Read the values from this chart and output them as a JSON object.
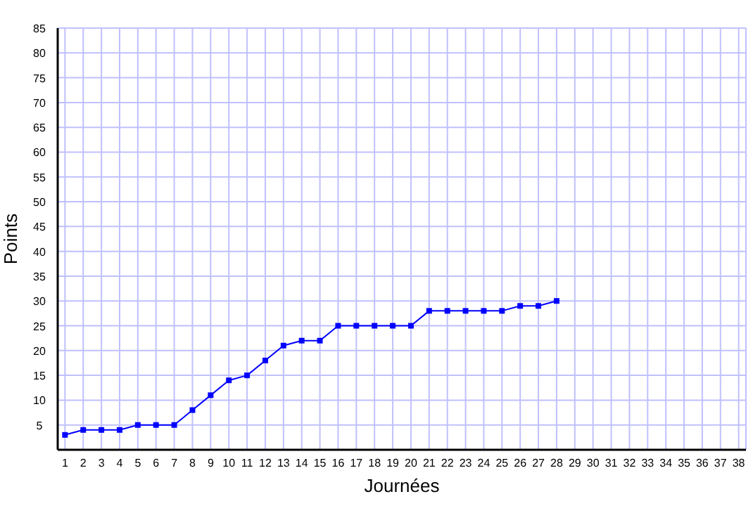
{
  "chart_data": {
    "type": "line",
    "xlabel": "Journées",
    "ylabel": "Points",
    "x": [
      1,
      2,
      3,
      4,
      5,
      6,
      7,
      8,
      9,
      10,
      11,
      12,
      13,
      14,
      15,
      16,
      17,
      18,
      19,
      20,
      21,
      22,
      23,
      24,
      25,
      26,
      27,
      28
    ],
    "series": [
      {
        "color": "#0000ff",
        "values": [
          3,
          4,
          4,
          4,
          5,
          5,
          5,
          8,
          11,
          14,
          15,
          18,
          21,
          22,
          22,
          25,
          25,
          25,
          25,
          25,
          28,
          28,
          28,
          28,
          28,
          29,
          29,
          30
        ]
      }
    ],
    "xlim": [
      0.6,
      38.4
    ],
    "xticks": [
      1,
      2,
      3,
      4,
      5,
      6,
      7,
      8,
      9,
      10,
      11,
      12,
      13,
      14,
      15,
      16,
      17,
      18,
      19,
      20,
      21,
      22,
      23,
      24,
      25,
      26,
      27,
      28,
      29,
      30,
      31,
      32,
      33,
      34,
      35,
      36,
      37,
      38
    ],
    "ylim": [
      0,
      85
    ],
    "yticks": [
      5,
      10,
      15,
      20,
      25,
      30,
      35,
      40,
      45,
      50,
      55,
      60,
      65,
      70,
      75,
      80,
      85
    ],
    "grid": true,
    "marker": "square",
    "line_style": "solid"
  }
}
